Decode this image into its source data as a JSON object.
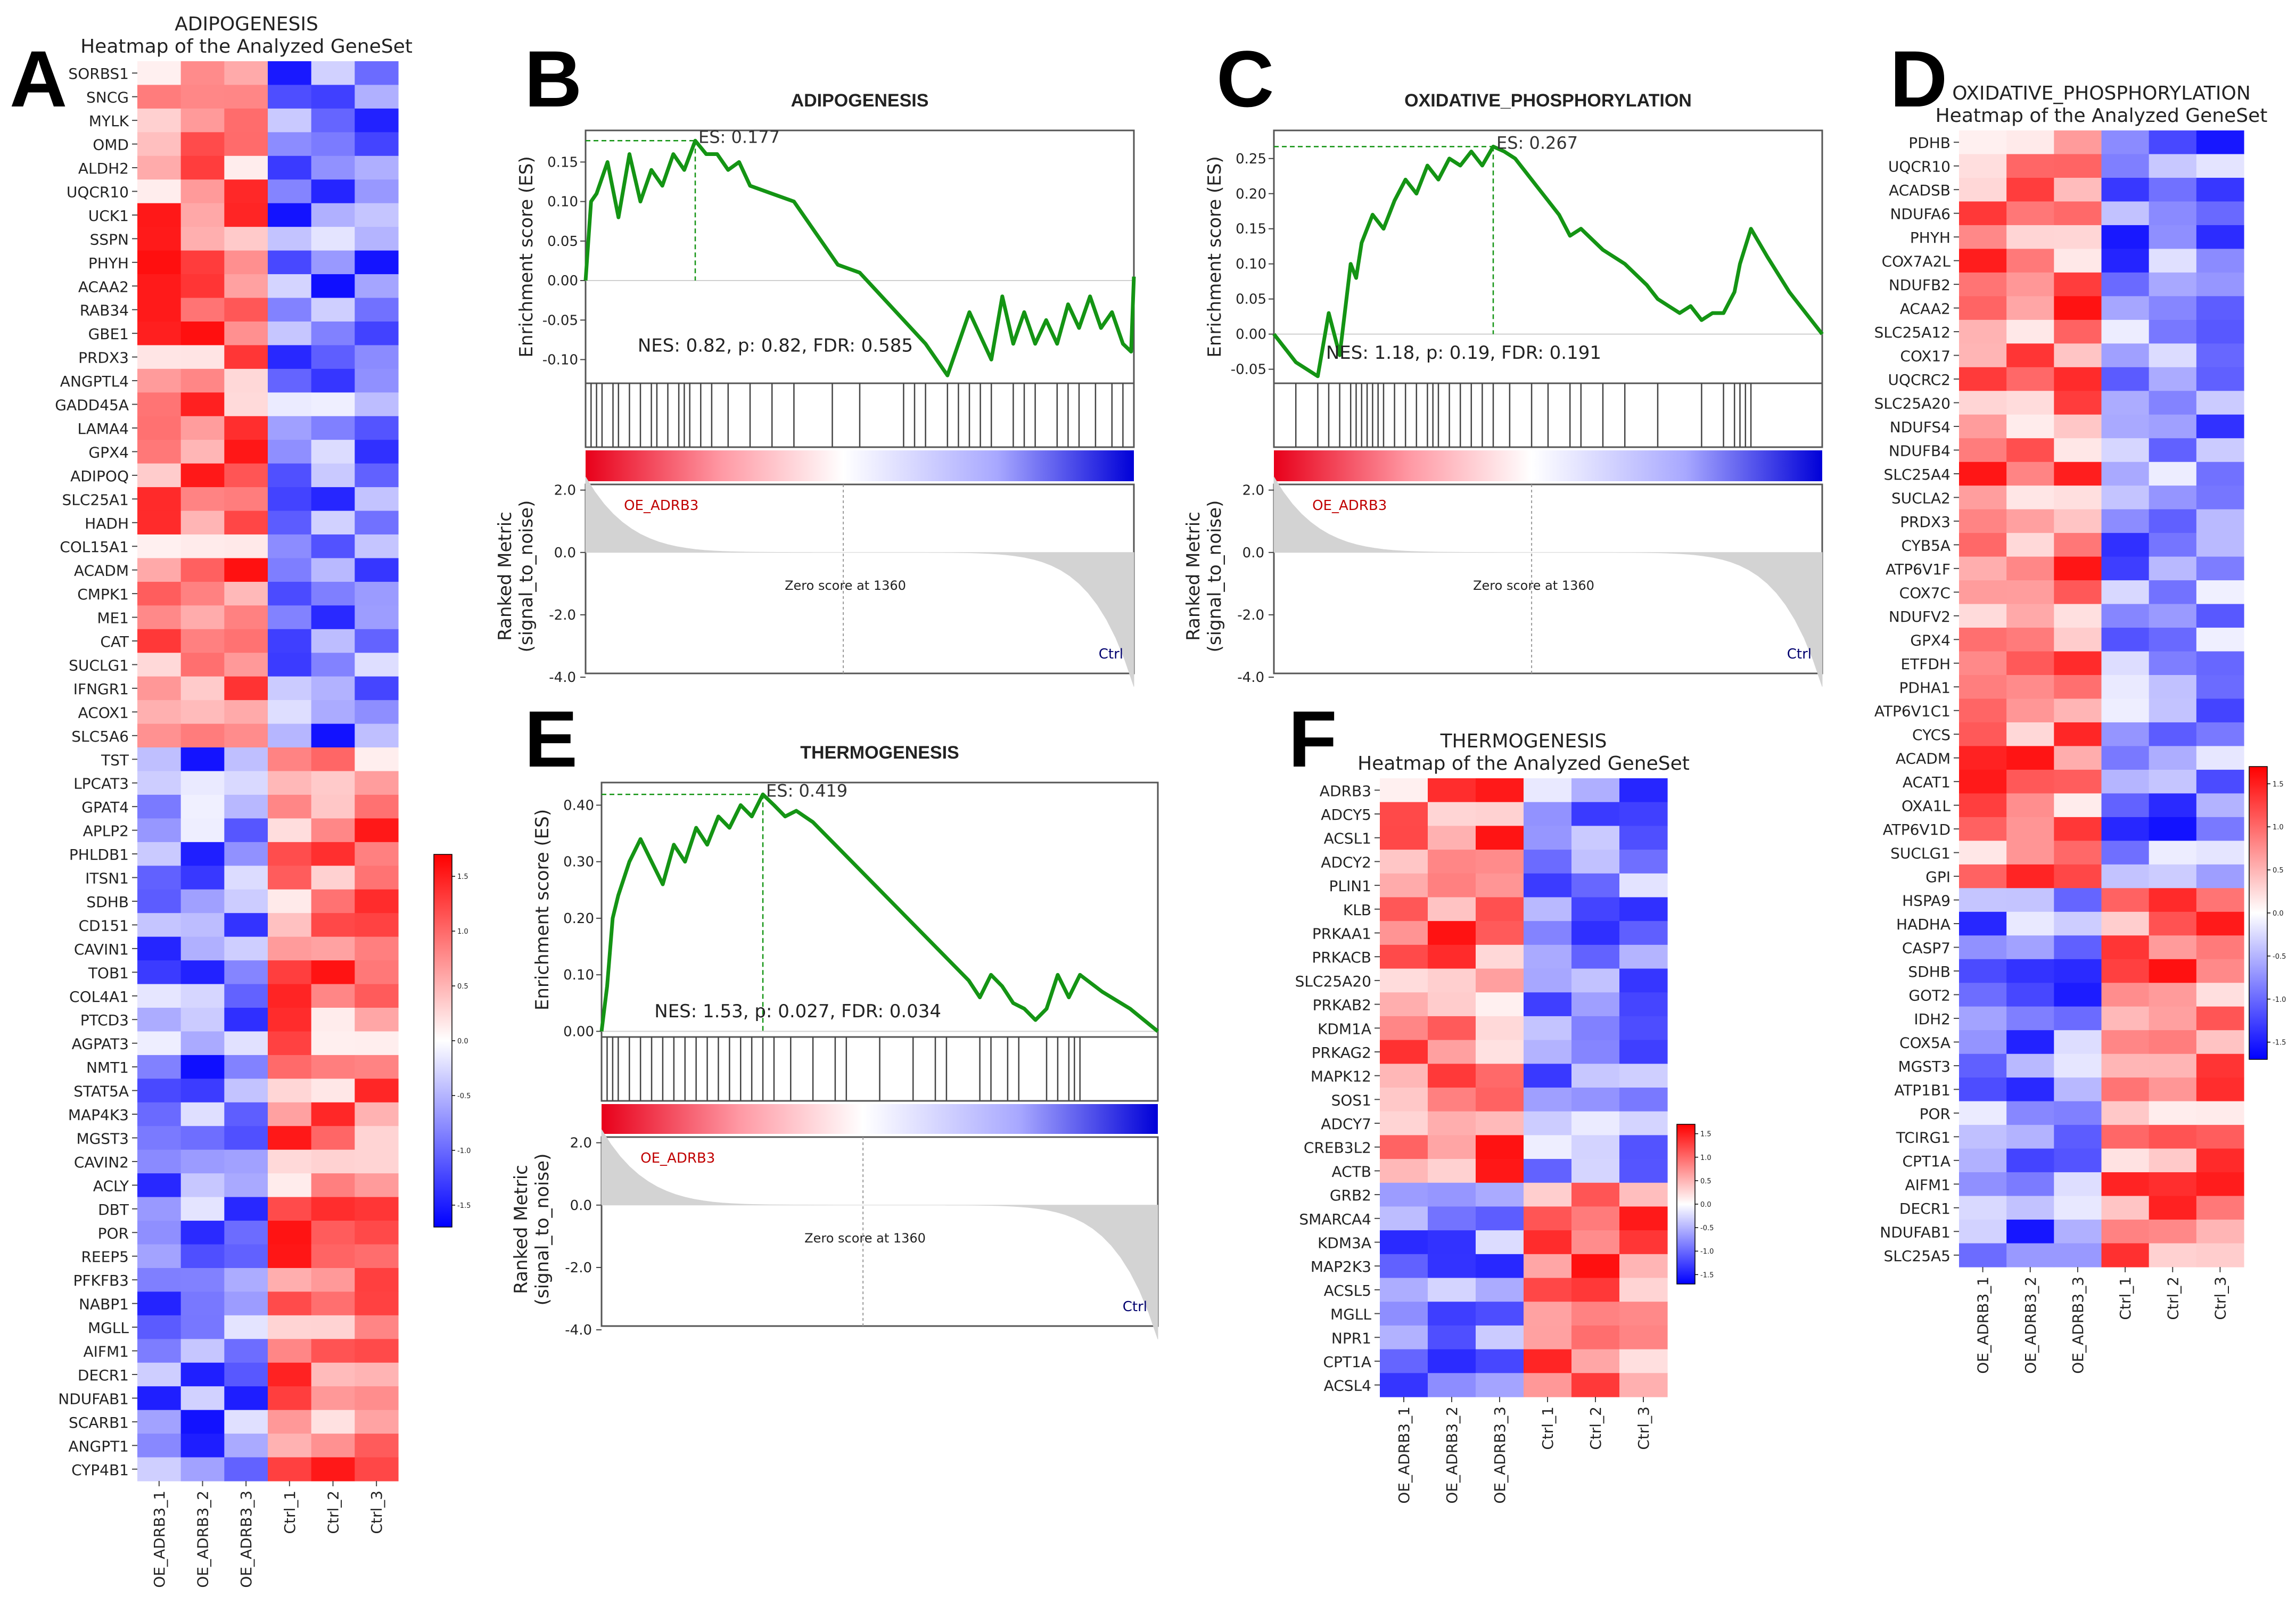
{
  "panel_letters": [
    "A",
    "B",
    "C",
    "D",
    "E",
    "F"
  ],
  "colorbar": {
    "ticks": [
      "1.5",
      "1.0",
      "0.5",
      "0.0",
      "-0.5",
      "-1.0",
      "-1.5"
    ]
  },
  "chart_data": [
    {
      "id": "A",
      "type": "heatmap",
      "title": "ADIPOGENESIS",
      "subtitle": "Heatmap of the Analyzed GeneSet",
      "columns": [
        "OE_ADRB3_1",
        "OE_ADRB3_2",
        "OE_ADRB3_3",
        "Ctrl_1",
        "Ctrl_2",
        "Ctrl_3"
      ],
      "rows": [
        "SORBS1",
        "SNCG",
        "MYLK",
        "OMD",
        "ALDH2",
        "UQCR10",
        "UCK1",
        "SSPN",
        "PHYH",
        "ACAA2",
        "RAB34",
        "GBE1",
        "PRDX3",
        "ANGPTL4",
        "GADD45A",
        "LAMA4",
        "GPX4",
        "ADIPOQ",
        "SLC25A1",
        "HADH",
        "COL15A1",
        "ACADM",
        "CMPK1",
        "ME1",
        "CAT",
        "SUCLG1",
        "IFNGR1",
        "ACOX1",
        "SLC5A6",
        "TST",
        "LPCAT3",
        "GPAT4",
        "APLP2",
        "PHLDB1",
        "ITSN1",
        "SDHB",
        "CD151",
        "CAVIN1",
        "TOB1",
        "COL4A1",
        "PTCD3",
        "AGPAT3",
        "NMT1",
        "STAT5A",
        "MAP4K3",
        "MGST3",
        "CAVIN2",
        "ACLY",
        "DBT",
        "POR",
        "REEP5",
        "PFKFB3",
        "NABP1",
        "MGLL",
        "AIFM1",
        "DECR1",
        "NDUFAB1",
        "SCARB1",
        "ANGPT1",
        "CYP4B1"
      ],
      "up_in_OE_rows": 29,
      "value_range": [
        -1.5,
        1.5
      ]
    },
    {
      "id": "B",
      "type": "line",
      "title": "ADIPOGENESIS",
      "ylabel": "Enrichment score (ES)",
      "ylim": [
        -0.13,
        0.19
      ],
      "yticks": [
        0.15,
        0.1,
        0.05,
        0.0,
        -0.05,
        -0.1
      ],
      "es_label": "ES: 0.177",
      "stats": "NES: 0.82, p: 0.82, FDR: 0.585",
      "rank_ylabel": "Ranked Metric (signal_to_noise)",
      "rank_yticks": [
        "2.0",
        "0.0",
        "-2.0",
        "-4.0"
      ],
      "pos_label": "OE_ADRB3",
      "neg_label": "Ctrl",
      "zero_label": "Zero score at 1360",
      "x": [
        0,
        0.01,
        0.02,
        0.04,
        0.06,
        0.08,
        0.1,
        0.12,
        0.14,
        0.16,
        0.18,
        0.2,
        0.22,
        0.24,
        0.26,
        0.28,
        0.3,
        0.34,
        0.38,
        0.42,
        0.46,
        0.5,
        0.54,
        0.58,
        0.62,
        0.66,
        0.7,
        0.74,
        0.76,
        0.78,
        0.8,
        0.82,
        0.84,
        0.86,
        0.88,
        0.9,
        0.92,
        0.94,
        0.96,
        0.98,
        0.995,
        1
      ],
      "y": [
        0,
        0.1,
        0.11,
        0.15,
        0.08,
        0.16,
        0.1,
        0.14,
        0.12,
        0.16,
        0.14,
        0.177,
        0.16,
        0.16,
        0.14,
        0.15,
        0.12,
        0.11,
        0.1,
        0.06,
        0.02,
        0.01,
        -0.02,
        -0.05,
        -0.08,
        -0.12,
        -0.04,
        -0.1,
        -0.02,
        -0.08,
        -0.04,
        -0.08,
        -0.05,
        -0.08,
        -0.03,
        -0.06,
        -0.02,
        -0.06,
        -0.04,
        -0.08,
        -0.09,
        0.005
      ],
      "hits": [
        0.01,
        0.02,
        0.03,
        0.05,
        0.06,
        0.08,
        0.1,
        0.12,
        0.13,
        0.15,
        0.17,
        0.18,
        0.19,
        0.21,
        0.23,
        0.26,
        0.3,
        0.34,
        0.38,
        0.45,
        0.5,
        0.58,
        0.6,
        0.62,
        0.66,
        0.68,
        0.7,
        0.72,
        0.74,
        0.78,
        0.8,
        0.82,
        0.86,
        0.88,
        0.9,
        0.93,
        0.96,
        0.98
      ],
      "zero_frac": 0.47
    },
    {
      "id": "C",
      "type": "line",
      "title": "OXIDATIVE_PHOSPHORYLATION",
      "ylabel": "Enrichment score (ES)",
      "ylim": [
        -0.07,
        0.29
      ],
      "yticks": [
        0.25,
        0.2,
        0.15,
        0.1,
        0.05,
        0.0,
        -0.05
      ],
      "es_label": "ES: 0.267",
      "stats": "NES: 1.18, p: 0.19, FDR: 0.191",
      "rank_ylabel": "Ranked Metric (signal_to_noise)",
      "rank_yticks": [
        "2.0",
        "0.0",
        "-2.0",
        "-4.0"
      ],
      "pos_label": "OE_ADRB3",
      "neg_label": "Ctrl",
      "zero_label": "Zero score at 1360",
      "x": [
        0,
        0.04,
        0.08,
        0.1,
        0.12,
        0.14,
        0.15,
        0.16,
        0.18,
        0.2,
        0.22,
        0.24,
        0.26,
        0.28,
        0.3,
        0.32,
        0.34,
        0.36,
        0.38,
        0.4,
        0.42,
        0.44,
        0.46,
        0.48,
        0.5,
        0.52,
        0.54,
        0.56,
        0.6,
        0.64,
        0.68,
        0.7,
        0.72,
        0.74,
        0.76,
        0.78,
        0.8,
        0.82,
        0.84,
        0.85,
        0.87,
        0.9,
        0.94,
        1
      ],
      "y": [
        0,
        -0.04,
        -0.06,
        0.03,
        -0.03,
        0.1,
        0.08,
        0.13,
        0.17,
        0.15,
        0.19,
        0.22,
        0.2,
        0.24,
        0.22,
        0.25,
        0.24,
        0.26,
        0.24,
        0.267,
        0.26,
        0.25,
        0.23,
        0.21,
        0.19,
        0.17,
        0.14,
        0.15,
        0.12,
        0.1,
        0.07,
        0.05,
        0.04,
        0.03,
        0.04,
        0.02,
        0.03,
        0.03,
        0.06,
        0.1,
        0.15,
        0.11,
        0.06,
        0.0
      ],
      "hits": [
        0.04,
        0.08,
        0.1,
        0.12,
        0.14,
        0.15,
        0.16,
        0.17,
        0.18,
        0.19,
        0.2,
        0.22,
        0.24,
        0.26,
        0.28,
        0.29,
        0.3,
        0.32,
        0.34,
        0.36,
        0.38,
        0.4,
        0.43,
        0.47,
        0.5,
        0.54,
        0.56,
        0.6,
        0.64,
        0.7,
        0.78,
        0.82,
        0.84,
        0.85,
        0.86,
        0.87
      ],
      "zero_frac": 0.47
    },
    {
      "id": "D",
      "type": "heatmap",
      "title": "OXIDATIVE_PHOSPHORYLATION",
      "subtitle": "Heatmap of the Analyzed GeneSet",
      "columns": [
        "OE_ADRB3_1",
        "OE_ADRB3_2",
        "OE_ADRB3_3",
        "Ctrl_1",
        "Ctrl_2",
        "Ctrl_3"
      ],
      "rows": [
        "PDHB",
        "UQCR10",
        "ACADSB",
        "NDUFA6",
        "PHYH",
        "COX7A2L",
        "NDUFB2",
        "ACAA2",
        "SLC25A12",
        "COX17",
        "UQCRC2",
        "SLC25A20",
        "NDUFS4",
        "NDUFB4",
        "SLC25A4",
        "SUCLA2",
        "PRDX3",
        "CYB5A",
        "ATP6V1F",
        "COX7C",
        "NDUFV2",
        "GPX4",
        "ETFDH",
        "PDHA1",
        "ATP6V1C1",
        "CYCS",
        "ACADM",
        "ACAT1",
        "OXA1L",
        "ATP6V1D",
        "SUCLG1",
        "GPI",
        "HSPA9",
        "HADHA",
        "CASP7",
        "SDHB",
        "GOT2",
        "IDH2",
        "COX5A",
        "MGST3",
        "ATP1B1",
        "POR",
        "TCIRG1",
        "CPT1A",
        "AIFM1",
        "DECR1",
        "NDUFAB1",
        "SLC25A5"
      ],
      "up_in_OE_rows": 32,
      "value_range": [
        -1.5,
        1.5
      ]
    },
    {
      "id": "E",
      "type": "line",
      "title": "THERMOGENESIS",
      "ylabel": "Enrichment score (ES)",
      "ylim": [
        -0.01,
        0.44
      ],
      "yticks": [
        0.4,
        0.3,
        0.2,
        0.1,
        0.0
      ],
      "es_label": "ES: 0.419",
      "stats": "NES: 1.53, p: 0.027, FDR: 0.034",
      "rank_ylabel": "Ranked Metric (signal_to_noise)",
      "rank_yticks": [
        "2.0",
        "0.0",
        "-2.0",
        "-4.0"
      ],
      "pos_label": "OE_ADRB3",
      "neg_label": "Ctrl",
      "zero_label": "Zero score at 1360",
      "x": [
        0,
        0.01,
        0.02,
        0.03,
        0.05,
        0.07,
        0.09,
        0.11,
        0.13,
        0.15,
        0.17,
        0.19,
        0.21,
        0.23,
        0.25,
        0.27,
        0.29,
        0.31,
        0.33,
        0.35,
        0.38,
        0.42,
        0.46,
        0.5,
        0.54,
        0.58,
        0.62,
        0.66,
        0.68,
        0.7,
        0.72,
        0.74,
        0.76,
        0.78,
        0.8,
        0.82,
        0.84,
        0.86,
        0.9,
        0.95,
        1
      ],
      "y": [
        0,
        0.08,
        0.2,
        0.24,
        0.3,
        0.34,
        0.3,
        0.26,
        0.33,
        0.3,
        0.36,
        0.33,
        0.38,
        0.36,
        0.4,
        0.38,
        0.419,
        0.4,
        0.38,
        0.39,
        0.37,
        0.33,
        0.29,
        0.25,
        0.21,
        0.17,
        0.13,
        0.09,
        0.06,
        0.1,
        0.08,
        0.05,
        0.04,
        0.02,
        0.04,
        0.1,
        0.06,
        0.1,
        0.07,
        0.04,
        0.0
      ],
      "hits": [
        0.01,
        0.02,
        0.03,
        0.05,
        0.07,
        0.09,
        0.11,
        0.13,
        0.15,
        0.17,
        0.19,
        0.21,
        0.23,
        0.25,
        0.27,
        0.29,
        0.31,
        0.34,
        0.38,
        0.42,
        0.44,
        0.5,
        0.56,
        0.6,
        0.62,
        0.68,
        0.7,
        0.73,
        0.75,
        0.8,
        0.82,
        0.84,
        0.85,
        0.86
      ],
      "zero_frac": 0.47
    },
    {
      "id": "F",
      "type": "heatmap",
      "title": "THERMOGENESIS",
      "subtitle": "Heatmap of the Analyzed GeneSet",
      "columns": [
        "OE_ADRB3_1",
        "OE_ADRB3_2",
        "OE_ADRB3_3",
        "Ctrl_1",
        "Ctrl_2",
        "Ctrl_3"
      ],
      "rows": [
        "ADRB3",
        "ADCY5",
        "ACSL1",
        "ADCY2",
        "PLIN1",
        "KLB",
        "PRKAA1",
        "PRKACB",
        "SLC25A20",
        "PRKAB2",
        "KDM1A",
        "PRKAG2",
        "MAPK12",
        "SOS1",
        "ADCY7",
        "CREB3L2",
        "ACTB",
        "GRB2",
        "SMARCA4",
        "KDM3A",
        "MAP2K3",
        "ACSL5",
        "MGLL",
        "NPR1",
        "CPT1A",
        "ACSL4"
      ],
      "up_in_OE_rows": 17,
      "value_range": [
        -1.5,
        1.5
      ]
    }
  ]
}
